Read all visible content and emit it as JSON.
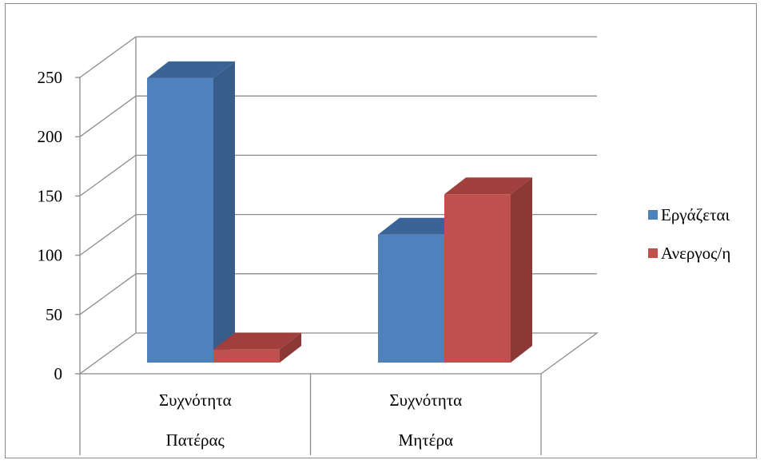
{
  "chart_data": {
    "type": "bar",
    "title": "",
    "xlabel": "",
    "ylabel": "",
    "ylim": [
      0,
      250
    ],
    "yticks": [
      0,
      50,
      100,
      150,
      200,
      250
    ],
    "grid": true,
    "three_d": true,
    "legend_position": "right",
    "categories": [
      [
        "Συχνότητα",
        "Πατέρας"
      ],
      [
        "Συχνότητα",
        "Μητέρα"
      ]
    ],
    "series": [
      {
        "name": "Εργάζεται",
        "values": [
          240,
          108
        ],
        "color": "#4f81bd",
        "side_color": "#385d8a",
        "top_color": "#3a6396"
      },
      {
        "name": "Ανεργος/η",
        "values": [
          11,
          142
        ],
        "color": "#c0504d",
        "side_color": "#8c3836",
        "top_color": "#a03f3c"
      }
    ]
  }
}
